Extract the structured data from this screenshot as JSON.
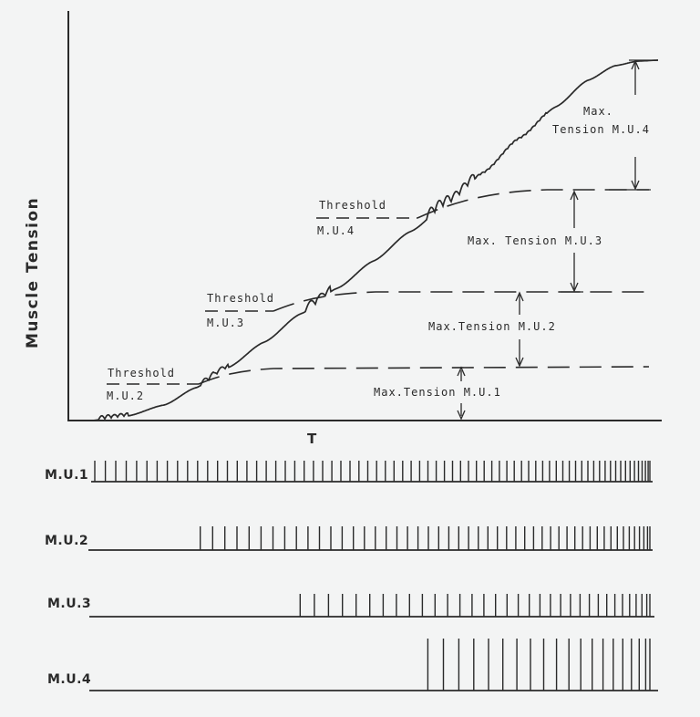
{
  "y_axis_label": "Muscle Tension",
  "x_axis_label": "T",
  "thresholds": [
    {
      "label": "Threshold",
      "unit": "M.U.2"
    },
    {
      "label": "Threshold",
      "unit": "M.U.3"
    },
    {
      "label": "Threshold",
      "unit": "M.U.4"
    }
  ],
  "max_tension": [
    {
      "label": "Max.Tension  M.U.1"
    },
    {
      "label": "Max.Tension  M.U.2"
    },
    {
      "label": "Max.  Tension  M.U.3"
    },
    {
      "line1": "Max.",
      "line2": "Tension M.U.4"
    }
  ],
  "spike_trains": [
    {
      "label": "M.U.1",
      "start": 0.0,
      "spike_count": 72
    },
    {
      "label": "M.U.2",
      "start": 0.19,
      "spike_count": 50
    },
    {
      "label": "M.U.3",
      "start": 0.37,
      "spike_count": 34
    },
    {
      "label": "M.U.4",
      "start": 0.6,
      "spike_count": 20
    }
  ]
}
